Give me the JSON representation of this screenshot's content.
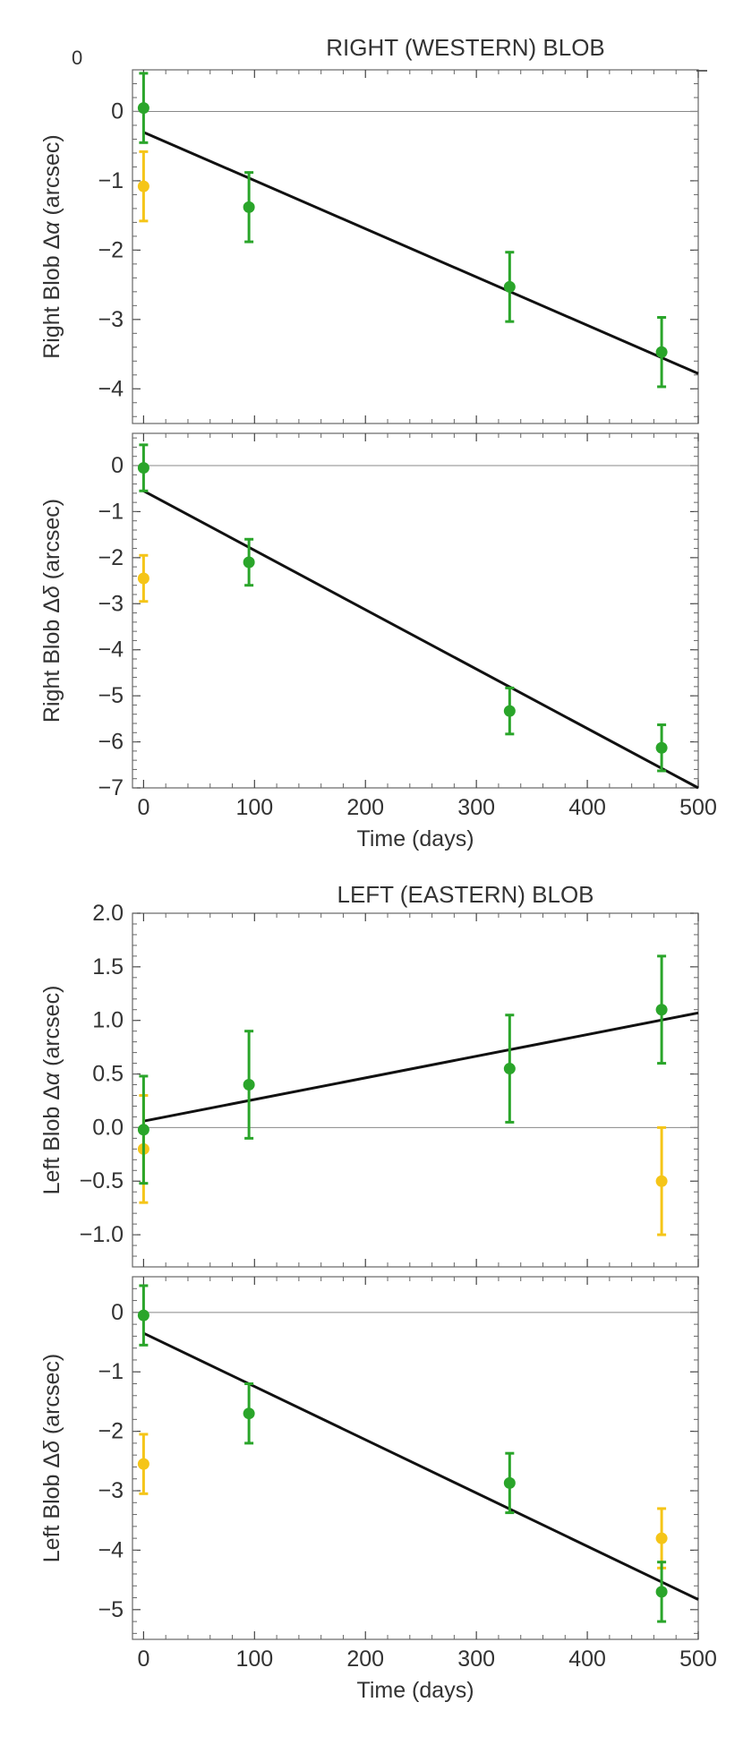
{
  "page": {
    "corner_label": "0"
  },
  "colors": {
    "primary": "#2aa52a",
    "secondary": "#f5c518",
    "fit": "#111111",
    "zero_line": "#888888",
    "frame": "#666666",
    "text": "#333333"
  },
  "titles": {
    "right": "RIGHT (WESTERN) BLOB",
    "left": "LEFT (EASTERN) BLOB"
  },
  "chart_data": [
    {
      "type": "scatter",
      "id": "right-ra",
      "ylabel_prefix": "Right Blob Δ",
      "ylabel_symbol": "α",
      "ylabel_suffix": " (arcsec)",
      "xlim": [
        -10,
        500
      ],
      "ylim": [
        -4.5,
        0.6
      ],
      "yticks": [
        0,
        -1,
        -2,
        -3,
        -4
      ],
      "ytick_labels": [
        "0",
        "−1",
        "−2",
        "−3",
        "−4"
      ],
      "xticks": [
        0,
        100,
        200,
        300,
        400,
        500
      ],
      "show_xtick_labels": false,
      "xlabel": "",
      "zero_line": true,
      "fit": {
        "x": [
          0,
          500
        ],
        "y": [
          -0.3,
          -3.78
        ]
      },
      "series": [
        {
          "name": "green",
          "color": "#2aa52a",
          "points": [
            {
              "x": 0,
              "y": 0.05,
              "err": 0.5
            },
            {
              "x": 95,
              "y": -1.38,
              "err": 0.5
            },
            {
              "x": 330,
              "y": -2.53,
              "err": 0.5
            },
            {
              "x": 467,
              "y": -3.47,
              "err": 0.5
            }
          ]
        },
        {
          "name": "yellow",
          "color": "#f5c518",
          "points": [
            {
              "x": 0,
              "y": -1.08,
              "err": 0.5
            }
          ]
        }
      ]
    },
    {
      "type": "scatter",
      "id": "right-dec",
      "ylabel_prefix": "Right Blob Δ",
      "ylabel_symbol": "δ",
      "ylabel_suffix": " (arcsec)",
      "xlim": [
        -10,
        500
      ],
      "ylim": [
        -7,
        0.7
      ],
      "yticks": [
        0,
        -1,
        -2,
        -3,
        -4,
        -5,
        -6,
        -7
      ],
      "ytick_labels": [
        "0",
        "−1",
        "−2",
        "−3",
        "−4",
        "−5",
        "−6",
        "−7"
      ],
      "xticks": [
        0,
        100,
        200,
        300,
        400,
        500
      ],
      "xtick_labels": [
        "0",
        "100",
        "200",
        "300",
        "400",
        "500"
      ],
      "show_xtick_labels": true,
      "xlabel": "Time (days)",
      "zero_line": true,
      "fit": {
        "x": [
          0,
          500
        ],
        "y": [
          -0.55,
          -7.0
        ]
      },
      "series": [
        {
          "name": "green",
          "color": "#2aa52a",
          "points": [
            {
              "x": 0,
              "y": -0.05,
              "err": 0.5
            },
            {
              "x": 95,
              "y": -2.1,
              "err": 0.5
            },
            {
              "x": 330,
              "y": -5.33,
              "err": 0.5
            },
            {
              "x": 467,
              "y": -6.13,
              "err": 0.5
            }
          ]
        },
        {
          "name": "yellow",
          "color": "#f5c518",
          "points": [
            {
              "x": 0,
              "y": -2.45,
              "err": 0.5
            }
          ]
        }
      ]
    },
    {
      "type": "scatter",
      "id": "left-ra",
      "ylabel_prefix": "Left Blob Δ",
      "ylabel_symbol": "α",
      "ylabel_suffix": " (arcsec)",
      "xlim": [
        -10,
        500
      ],
      "ylim": [
        -1.3,
        2.0
      ],
      "yticks": [
        2.0,
        1.5,
        1.0,
        0.5,
        0.0,
        -0.5,
        -1.0
      ],
      "ytick_labels": [
        "2.0",
        "1.5",
        "1.0",
        "0.5",
        "0.0",
        "−0.5",
        "−1.0"
      ],
      "xticks": [
        0,
        100,
        200,
        300,
        400,
        500
      ],
      "show_xtick_labels": false,
      "xlabel": "",
      "zero_line": true,
      "fit": {
        "x": [
          0,
          500
        ],
        "y": [
          0.06,
          1.07
        ]
      },
      "series": [
        {
          "name": "green",
          "color": "#2aa52a",
          "points": [
            {
              "x": 0,
              "y": -0.02,
              "err": 0.5
            },
            {
              "x": 95,
              "y": 0.4,
              "err": 0.5
            },
            {
              "x": 330,
              "y": 0.55,
              "err": 0.5
            },
            {
              "x": 467,
              "y": 1.1,
              "err": 0.5
            }
          ]
        },
        {
          "name": "yellow",
          "color": "#f5c518",
          "points": [
            {
              "x": 0,
              "y": -0.2,
              "err": 0.5
            },
            {
              "x": 467,
              "y": -0.5,
              "err": 0.5
            }
          ]
        }
      ]
    },
    {
      "type": "scatter",
      "id": "left-dec",
      "ylabel_prefix": "Left Blob Δ",
      "ylabel_symbol": "δ",
      "ylabel_suffix": " (arcsec)",
      "xlim": [
        -10,
        500
      ],
      "ylim": [
        -5.5,
        0.6
      ],
      "yticks": [
        0,
        -1,
        -2,
        -3,
        -4,
        -5
      ],
      "ytick_labels": [
        "0",
        "−1",
        "−2",
        "−3",
        "−4",
        "−5"
      ],
      "xticks": [
        0,
        100,
        200,
        300,
        400,
        500
      ],
      "xtick_labels": [
        "0",
        "100",
        "200",
        "300",
        "400",
        "500"
      ],
      "show_xtick_labels": true,
      "xlabel": "Time (days)",
      "zero_line": true,
      "fit": {
        "x": [
          0,
          500
        ],
        "y": [
          -0.35,
          -4.83
        ]
      },
      "series": [
        {
          "name": "green",
          "color": "#2aa52a",
          "points": [
            {
              "x": 0,
              "y": -0.05,
              "err": 0.5
            },
            {
              "x": 95,
              "y": -1.7,
              "err": 0.5
            },
            {
              "x": 330,
              "y": -2.87,
              "err": 0.5
            },
            {
              "x": 467,
              "y": -4.7,
              "err": 0.5
            }
          ]
        },
        {
          "name": "yellow",
          "color": "#f5c518",
          "points": [
            {
              "x": 0,
              "y": -2.55,
              "err": 0.5
            },
            {
              "x": 467,
              "y": -3.8,
              "err": 0.5
            }
          ]
        }
      ]
    }
  ]
}
